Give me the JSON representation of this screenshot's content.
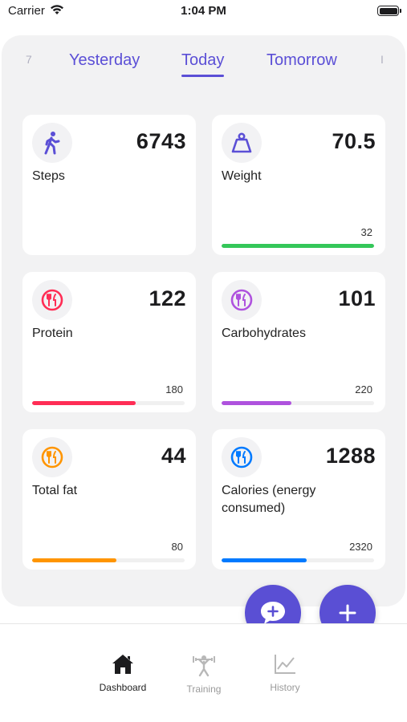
{
  "status_bar": {
    "carrier": "Carrier",
    "time": "1:04 PM"
  },
  "date_tabs": {
    "left_edge": "7",
    "items": [
      "Yesterday",
      "Today",
      "Tomorrow"
    ],
    "active": "Today",
    "right_edge": "I"
  },
  "colors": {
    "accent": "#5b4fd6",
    "steps_icon": "#5b4fd6",
    "weight": "#34c759",
    "protein": "#ff2d55",
    "carbs": "#af52de",
    "fat": "#ff9500",
    "calories": "#007aff"
  },
  "cards": {
    "steps": {
      "value": "6743",
      "label": "Steps",
      "icon": "walking-person-icon"
    },
    "weight": {
      "value": "70.5",
      "label": "Weight",
      "goal": "32",
      "progress": 1.0,
      "icon": "scale-icon"
    },
    "protein": {
      "value": "122",
      "label": "Protein",
      "goal": "180",
      "progress": 0.68,
      "icon": "fork-knife-icon"
    },
    "carbs": {
      "value": "101",
      "label": "Carbohydrates",
      "goal": "220",
      "progress": 0.46,
      "icon": "fork-knife-icon"
    },
    "fat": {
      "value": "44",
      "label": "Total fat",
      "goal": "80",
      "progress": 0.55,
      "icon": "fork-knife-icon"
    },
    "calories": {
      "value": "1288",
      "label": "Calories (energy consumed)",
      "goal": "2320",
      "progress": 0.56,
      "icon": "fork-knife-icon"
    }
  },
  "fabs": {
    "chat": "chat-add-icon",
    "add": "plus-icon"
  },
  "bottom_nav": {
    "items": [
      {
        "label": "Dashboard",
        "icon": "home-icon",
        "active": true
      },
      {
        "label": "Training",
        "icon": "weightlifter-icon",
        "active": false
      },
      {
        "label": "History",
        "icon": "chart-icon",
        "active": false
      }
    ]
  }
}
